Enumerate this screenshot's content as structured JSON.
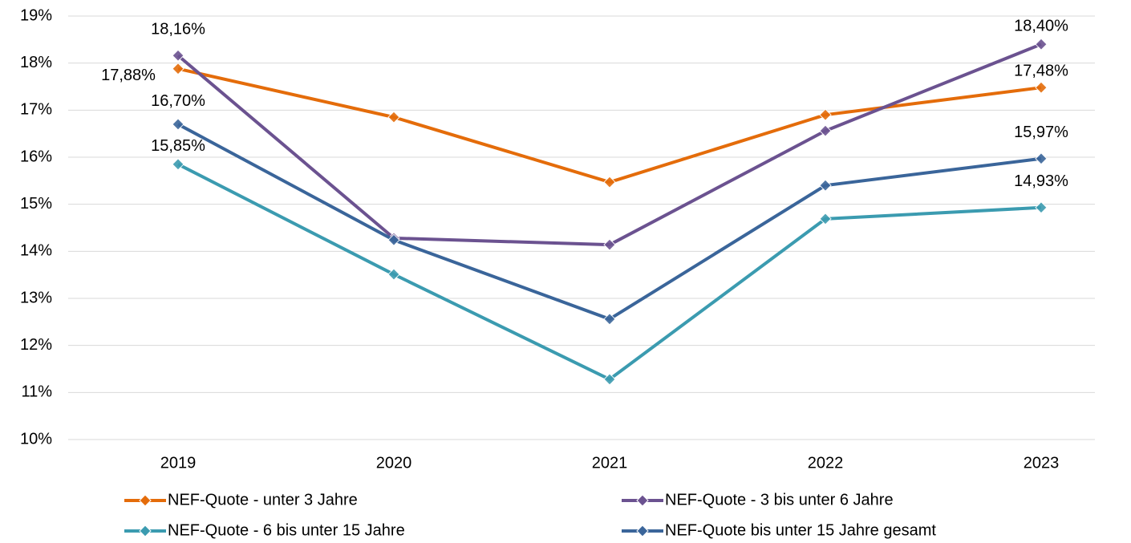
{
  "chart_data": {
    "type": "line",
    "categories": [
      "2019",
      "2020",
      "2021",
      "2022",
      "2023"
    ],
    "ylim": [
      10,
      19
    ],
    "yticks": [
      {
        "value": 10,
        "label": "10%"
      },
      {
        "value": 11,
        "label": "11%"
      },
      {
        "value": 12,
        "label": "12%"
      },
      {
        "value": 13,
        "label": "13%"
      },
      {
        "value": 14,
        "label": "14%"
      },
      {
        "value": 15,
        "label": "15%"
      },
      {
        "value": 16,
        "label": "16%"
      },
      {
        "value": 17,
        "label": "17%"
      },
      {
        "value": 18,
        "label": "18%"
      },
      {
        "value": 19,
        "label": "19%"
      }
    ],
    "grid": true,
    "legend": "bottom",
    "series": [
      {
        "name": "NEF-Quote - unter 3 Jahre",
        "color": "#e46c0a",
        "values": [
          17.88,
          16.85,
          15.47,
          16.9,
          17.48
        ],
        "value_labels": [
          "17,88%",
          null,
          null,
          null,
          "17,48%"
        ]
      },
      {
        "name": "NEF-Quote - 3 bis unter 6 Jahre",
        "color": "#6b5290",
        "values": [
          18.16,
          14.28,
          14.14,
          16.56,
          18.4
        ],
        "value_labels": [
          "18,16%",
          null,
          null,
          null,
          "18,40%"
        ]
      },
      {
        "name": "NEF-Quote - 6 bis unter 15 Jahre",
        "color": "#3b9bb0",
        "values": [
          15.85,
          13.51,
          11.28,
          14.69,
          14.93
        ],
        "value_labels": [
          "15,85%",
          null,
          null,
          null,
          "14,93%"
        ]
      },
      {
        "name": "NEF-Quote bis unter 15 Jahre gesamt",
        "color": "#3a659a",
        "values": [
          16.7,
          14.24,
          12.56,
          15.4,
          15.97
        ],
        "value_labels": [
          "16,70%",
          null,
          null,
          null,
          "15,97%"
        ]
      }
    ]
  }
}
